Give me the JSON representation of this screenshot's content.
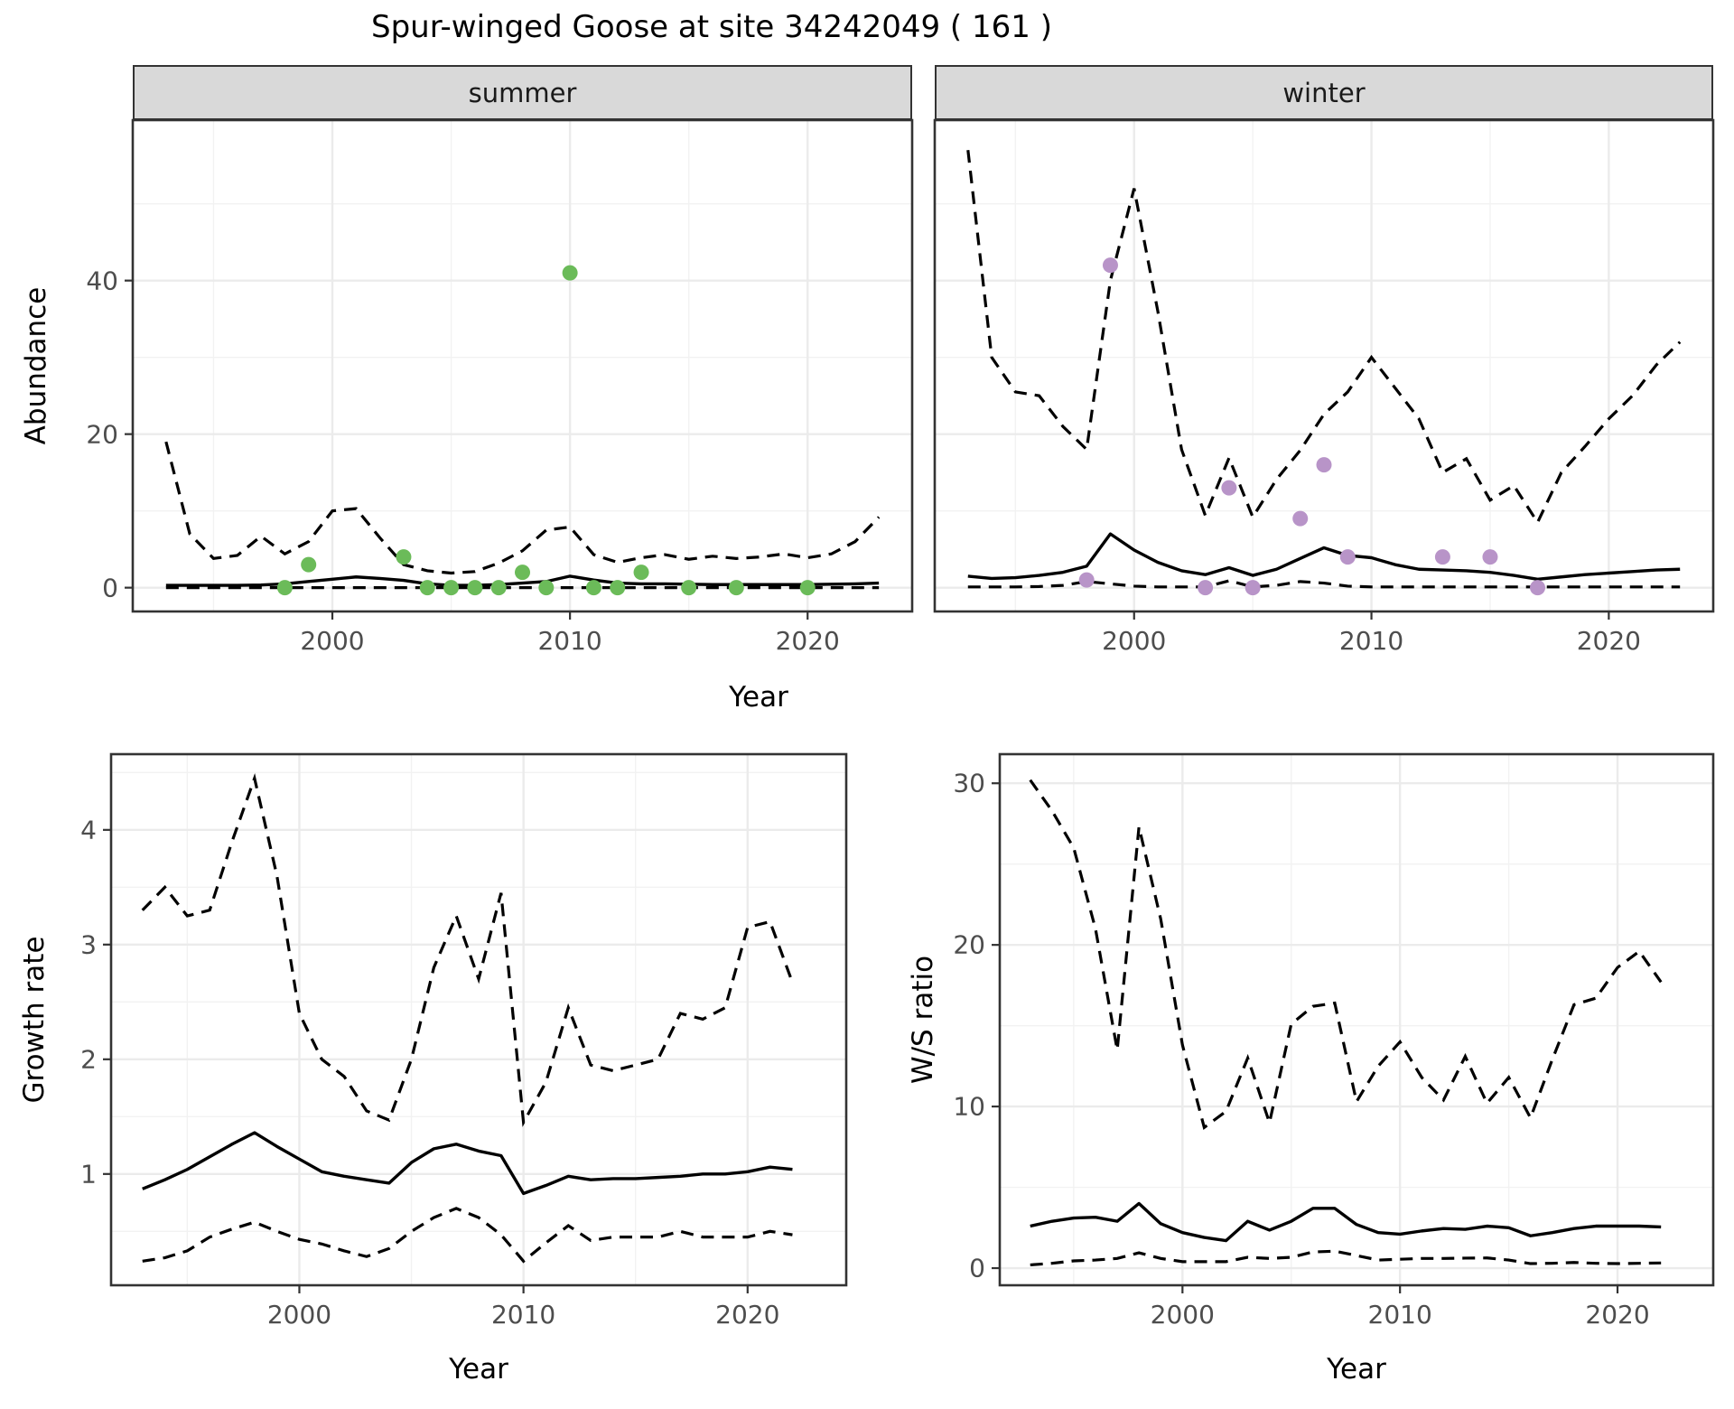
{
  "title": "Spur-winged Goose at site 34242049 ( 161 )",
  "colors": {
    "summer_points": "#6bbb59",
    "winter_points": "#b894c8",
    "line": "#000000",
    "strip_bg": "#d9d9d9",
    "grid_major": "#ebebeb",
    "grid_minor": "#f2f2f2",
    "panel_border": "#333333",
    "axis_text": "#4d4d4d"
  },
  "chart_data": [
    {
      "id": "abundance_summer",
      "type": "line",
      "facet_label": "summer",
      "ylabel": "Abundance",
      "xlabel": "Year",
      "legend": "none",
      "grid": "on",
      "xlim": [
        1991.6,
        2024.4
      ],
      "ylim": [
        -3.1,
        60.9
      ],
      "x_ticks": [
        "2000",
        "2010",
        "2020"
      ],
      "x_tick_values": [
        2000,
        2010,
        2020
      ],
      "x_minor": [
        1995,
        2005,
        2015
      ],
      "y_ticks": [
        "0",
        "20",
        "40"
      ],
      "y_tick_values": [
        0,
        20,
        40
      ],
      "y_minor": [
        10,
        30,
        50
      ],
      "years": [
        1993,
        1994,
        1995,
        1996,
        1997,
        1998,
        1999,
        2000,
        2001,
        2002,
        2003,
        2004,
        2005,
        2006,
        2007,
        2008,
        2009,
        2010,
        2011,
        2012,
        2013,
        2014,
        2015,
        2016,
        2017,
        2018,
        2019,
        2020,
        2021,
        2022,
        2023
      ],
      "mean": [
        0.3,
        0.3,
        0.3,
        0.3,
        0.35,
        0.5,
        0.8,
        1.1,
        1.4,
        1.2,
        0.95,
        0.5,
        0.3,
        0.3,
        0.4,
        0.6,
        0.8,
        1.5,
        1.0,
        0.6,
        0.5,
        0.5,
        0.45,
        0.4,
        0.4,
        0.4,
        0.4,
        0.4,
        0.45,
        0.5,
        0.6
      ],
      "upper": [
        19,
        7,
        3.8,
        4.2,
        6.7,
        4.4,
        6,
        10,
        10.3,
        6.5,
        3,
        2.2,
        1.9,
        2.1,
        3.2,
        4.8,
        7.5,
        7.9,
        4.3,
        3.3,
        3.9,
        4.3,
        3.7,
        4.1,
        3.8,
        4,
        4.4,
        3.9,
        4.4,
        6,
        9.2
      ],
      "lower": [
        0,
        0,
        0,
        0,
        0,
        0,
        0,
        0,
        0,
        0,
        0,
        0,
        0,
        0,
        0,
        0,
        0,
        0,
        0,
        0,
        0,
        0,
        0,
        0,
        0,
        0,
        0,
        0,
        0,
        0,
        0
      ],
      "observed_points": {
        "color_key": "summer_points",
        "points": [
          [
            1998,
            0
          ],
          [
            1999,
            3
          ],
          [
            2003,
            4
          ],
          [
            2004,
            0
          ],
          [
            2005,
            0
          ],
          [
            2006,
            0
          ],
          [
            2007,
            0
          ],
          [
            2008,
            2
          ],
          [
            2009,
            0
          ],
          [
            2010,
            41
          ],
          [
            2011,
            0
          ],
          [
            2012,
            0
          ],
          [
            2013,
            2
          ],
          [
            2015,
            0
          ],
          [
            2017,
            0
          ],
          [
            2020,
            0
          ]
        ]
      }
    },
    {
      "id": "abundance_winter",
      "type": "line",
      "facet_label": "winter",
      "ylabel": "Abundance",
      "xlabel": "Year",
      "legend": "none",
      "grid": "on",
      "xlim": [
        1991.6,
        2024.4
      ],
      "ylim": [
        -3.1,
        60.9
      ],
      "x_ticks": [
        "2000",
        "2010",
        "2020"
      ],
      "x_tick_values": [
        2000,
        2010,
        2020
      ],
      "x_minor": [
        1995,
        2005,
        2015
      ],
      "y_ticks": [
        "0",
        "20",
        "40"
      ],
      "y_tick_values": [
        0,
        20,
        40
      ],
      "y_minor": [
        10,
        30,
        50
      ],
      "years": [
        1993,
        1994,
        1995,
        1996,
        1997,
        1998,
        1999,
        2000,
        2001,
        2002,
        2003,
        2004,
        2005,
        2006,
        2007,
        2008,
        2009,
        2010,
        2011,
        2012,
        2013,
        2014,
        2015,
        2016,
        2017,
        2018,
        2019,
        2020,
        2021,
        2022,
        2023
      ],
      "mean": [
        1.5,
        1.2,
        1.3,
        1.6,
        2.0,
        2.8,
        7.0,
        4.9,
        3.3,
        2.2,
        1.7,
        2.6,
        1.6,
        2.4,
        3.8,
        5.2,
        4.2,
        3.9,
        3.0,
        2.4,
        2.3,
        2.2,
        2.0,
        1.6,
        1.1,
        1.4,
        1.7,
        1.9,
        2.1,
        2.3,
        2.4
      ],
      "upper": [
        57,
        30,
        25.5,
        25,
        21,
        18,
        40,
        52,
        36,
        18,
        9.4,
        16.9,
        9.2,
        14.1,
        17.9,
        22.6,
        25.5,
        30,
        26,
        22,
        15,
        16.8,
        11.4,
        13.3,
        8.5,
        15,
        18.4,
        22,
        25,
        29,
        32
      ],
      "lower": [
        0.1,
        0.1,
        0.1,
        0.15,
        0.3,
        0.8,
        0.5,
        0.2,
        0.1,
        0.1,
        0.1,
        0.9,
        0.1,
        0.3,
        0.8,
        0.6,
        0.2,
        0.1,
        0.1,
        0.1,
        0.1,
        0.1,
        0.1,
        0.1,
        0.1,
        0.1,
        0.1,
        0.1,
        0.1,
        0.1,
        0.1
      ],
      "observed_points": {
        "color_key": "winter_points",
        "points": [
          [
            1998,
            1
          ],
          [
            1999,
            42
          ],
          [
            2003,
            0
          ],
          [
            2004,
            13
          ],
          [
            2005,
            0
          ],
          [
            2007,
            9
          ],
          [
            2008,
            16
          ],
          [
            2009,
            4
          ],
          [
            2013,
            4
          ],
          [
            2015,
            4
          ],
          [
            2017,
            0
          ]
        ]
      }
    },
    {
      "id": "growth_rate",
      "type": "line",
      "facet_label": "",
      "ylabel": "Growth rate",
      "xlabel": "Year",
      "legend": "none",
      "grid": "on",
      "xlim": [
        1991.6,
        2024.4
      ],
      "ylim": [
        0.03,
        4.66
      ],
      "x_ticks": [
        "2000",
        "2010",
        "2020"
      ],
      "x_tick_values": [
        2000,
        2010,
        2020
      ],
      "x_minor": [
        1995,
        2005,
        2015
      ],
      "y_ticks": [
        "1",
        "2",
        "3",
        "4"
      ],
      "y_tick_values": [
        1,
        2,
        3,
        4
      ],
      "y_minor": [
        0.5,
        1.5,
        2.5,
        3.5,
        4.5
      ],
      "years": [
        1993,
        1994,
        1995,
        1996,
        1997,
        1998,
        1999,
        2000,
        2001,
        2002,
        2003,
        2004,
        2005,
        2006,
        2007,
        2008,
        2009,
        2010,
        2011,
        2012,
        2013,
        2014,
        2015,
        2016,
        2017,
        2018,
        2019,
        2020,
        2021,
        2022
      ],
      "mean": [
        0.87,
        0.95,
        1.04,
        1.15,
        1.26,
        1.36,
        1.24,
        1.13,
        1.02,
        0.98,
        0.95,
        0.92,
        1.1,
        1.22,
        1.26,
        1.2,
        1.16,
        0.83,
        0.9,
        0.98,
        0.95,
        0.96,
        0.96,
        0.97,
        0.98,
        1.0,
        1.0,
        1.02,
        1.06,
        1.04
      ],
      "upper": [
        3.3,
        3.5,
        3.25,
        3.3,
        3.9,
        4.45,
        3.6,
        2.4,
        2.0,
        1.85,
        1.55,
        1.47,
        2.0,
        2.8,
        3.25,
        2.7,
        3.45,
        1.45,
        1.8,
        2.45,
        1.95,
        1.9,
        1.95,
        2.0,
        2.4,
        2.35,
        2.45,
        3.15,
        3.2,
        2.67
      ],
      "lower": [
        0.24,
        0.27,
        0.33,
        0.45,
        0.52,
        0.58,
        0.5,
        0.43,
        0.39,
        0.33,
        0.28,
        0.35,
        0.5,
        0.62,
        0.7,
        0.62,
        0.47,
        0.24,
        0.4,
        0.55,
        0.42,
        0.45,
        0.45,
        0.45,
        0.5,
        0.45,
        0.45,
        0.45,
        0.5,
        0.47
      ],
      "observed_points": {
        "color_key": "line",
        "points": []
      }
    },
    {
      "id": "ws_ratio",
      "type": "line",
      "facet_label": "",
      "ylabel": "W/S ratio",
      "xlabel": "Year",
      "legend": "none",
      "grid": "on",
      "xlim": [
        1991.6,
        2024.4
      ],
      "ylim": [
        -1.06,
        31.8
      ],
      "x_ticks": [
        "2000",
        "2010",
        "2020"
      ],
      "x_tick_values": [
        2000,
        2010,
        2020
      ],
      "x_minor": [
        1995,
        2005,
        2015
      ],
      "y_ticks": [
        "0",
        "10",
        "20",
        "30"
      ],
      "y_tick_values": [
        0,
        10,
        20,
        30
      ],
      "y_minor": [
        5,
        15,
        25
      ],
      "years": [
        1993,
        1994,
        1995,
        1996,
        1997,
        1998,
        1999,
        2000,
        2001,
        2002,
        2003,
        2004,
        2005,
        2006,
        2007,
        2008,
        2009,
        2010,
        2011,
        2012,
        2013,
        2014,
        2015,
        2016,
        2017,
        2018,
        2019,
        2020,
        2021,
        2022
      ],
      "mean": [
        2.6,
        2.9,
        3.1,
        3.15,
        2.9,
        4.0,
        2.75,
        2.2,
        1.9,
        1.7,
        2.9,
        2.35,
        2.9,
        3.7,
        3.7,
        2.7,
        2.2,
        2.1,
        2.3,
        2.45,
        2.4,
        2.6,
        2.5,
        2.0,
        2.2,
        2.45,
        2.6,
        2.6,
        2.6,
        2.55
      ],
      "upper": [
        30.2,
        28.3,
        26,
        21,
        13.5,
        27.3,
        21.6,
        13.8,
        8.7,
        9.7,
        13,
        9,
        15.1,
        16.2,
        16.4,
        10.3,
        12.5,
        14,
        11.8,
        10.4,
        13.1,
        10.2,
        11.8,
        9.3,
        12.9,
        16.3,
        16.7,
        18.6,
        19.6,
        17.7
      ],
      "lower": [
        0.2,
        0.3,
        0.45,
        0.5,
        0.6,
        0.95,
        0.6,
        0.4,
        0.4,
        0.4,
        0.67,
        0.6,
        0.67,
        1.0,
        1.05,
        0.78,
        0.5,
        0.55,
        0.6,
        0.6,
        0.62,
        0.63,
        0.5,
        0.28,
        0.3,
        0.35,
        0.3,
        0.28,
        0.3,
        0.32
      ],
      "observed_points": {
        "color_key": "line",
        "points": []
      }
    }
  ]
}
